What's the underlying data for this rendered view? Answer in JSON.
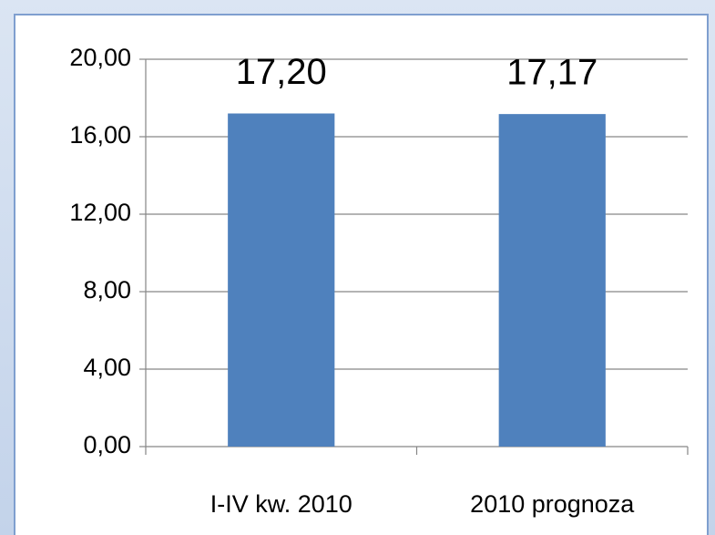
{
  "chart_data": {
    "type": "bar",
    "categories": [
      "I-IV kw. 2010",
      "2010 prognoza"
    ],
    "values": [
      17.2,
      17.17
    ],
    "value_labels": [
      "17,20",
      "17,17"
    ],
    "color": "#4f81bd",
    "ylim": [
      0,
      20
    ],
    "yticks": [
      {
        "value": 0,
        "label": "0,00"
      },
      {
        "value": 4,
        "label": "4,00"
      },
      {
        "value": 8,
        "label": "8,00"
      },
      {
        "value": 12,
        "label": "12,00"
      },
      {
        "value": 16,
        "label": "16,00"
      },
      {
        "value": 20,
        "label": "20,00"
      }
    ],
    "grid": true
  }
}
